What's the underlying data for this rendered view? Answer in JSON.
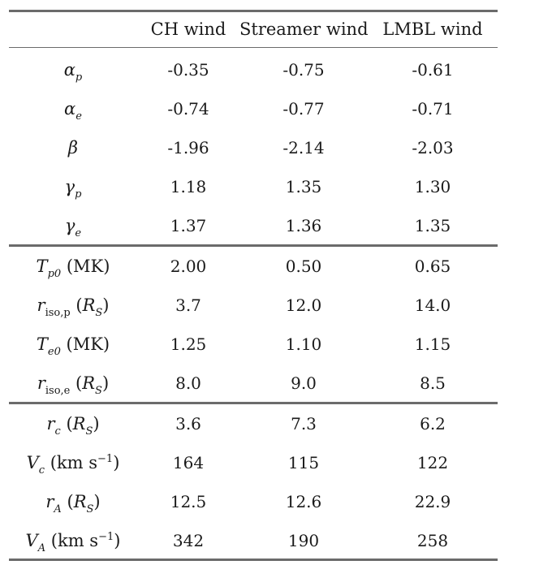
{
  "table": {
    "columns": [
      "",
      "CH wind",
      "Streamer wind",
      "LMBL wind"
    ],
    "rows": [
      {
        "param": {
          "sym": "α",
          "sub": "p",
          "unit_open": "",
          "unit_sym": "",
          "unit_sub": "",
          "unit_text": "",
          "unit_sup": "",
          "unit_close": ""
        },
        "values": [
          "-0.35",
          "-0.75",
          "-0.61"
        ]
      },
      {
        "param": {
          "sym": "α",
          "sub": "e",
          "unit_open": "",
          "unit_sym": "",
          "unit_sub": "",
          "unit_text": "",
          "unit_sup": "",
          "unit_close": ""
        },
        "values": [
          "-0.74",
          "-0.77",
          "-0.71"
        ]
      },
      {
        "param": {
          "sym": "β",
          "sub": "",
          "unit_open": "",
          "unit_sym": "",
          "unit_sub": "",
          "unit_text": "",
          "unit_sup": "",
          "unit_close": ""
        },
        "values": [
          "-1.96",
          "-2.14",
          "-2.03"
        ]
      },
      {
        "param": {
          "sym": "γ",
          "sub": "p",
          "unit_open": "",
          "unit_sym": "",
          "unit_sub": "",
          "unit_text": "",
          "unit_sup": "",
          "unit_close": ""
        },
        "values": [
          "1.18",
          "1.35",
          "1.30"
        ]
      },
      {
        "param": {
          "sym": "γ",
          "sub": "e",
          "unit_open": "",
          "unit_sym": "",
          "unit_sub": "",
          "unit_text": "",
          "unit_sup": "",
          "unit_close": ""
        },
        "values": [
          "1.37",
          "1.36",
          "1.35"
        ]
      },
      {
        "param": {
          "sym": "T",
          "sub": "p0",
          "unit_open": " (",
          "unit_sym": "",
          "unit_sub": "",
          "unit_text": "MK",
          "unit_sup": "",
          "unit_close": ")"
        },
        "values": [
          "2.00",
          "0.50",
          "0.65"
        ]
      },
      {
        "param": {
          "sym": "r",
          "sub": "iso,p",
          "unit_open": " (",
          "unit_sym": "R",
          "unit_sub": "S",
          "unit_text": "",
          "unit_sup": "",
          "unit_close": ")"
        },
        "values": [
          "3.7",
          "12.0",
          "14.0"
        ]
      },
      {
        "param": {
          "sym": "T",
          "sub": "e0",
          "unit_open": " (",
          "unit_sym": "",
          "unit_sub": "",
          "unit_text": "MK",
          "unit_sup": "",
          "unit_close": ")"
        },
        "values": [
          "1.25",
          "1.10",
          "1.15"
        ]
      },
      {
        "param": {
          "sym": "r",
          "sub": "iso,e",
          "unit_open": " (",
          "unit_sym": "R",
          "unit_sub": "S",
          "unit_text": "",
          "unit_sup": "",
          "unit_close": ")"
        },
        "values": [
          "8.0",
          "9.0",
          "8.5"
        ]
      },
      {
        "param": {
          "sym": "r",
          "sub": "c",
          "unit_open": " (",
          "unit_sym": "R",
          "unit_sub": "S",
          "unit_text": "",
          "unit_sup": "",
          "unit_close": ")"
        },
        "values": [
          "3.6",
          "7.3",
          "6.2"
        ]
      },
      {
        "param": {
          "sym": "V",
          "sub": "c",
          "unit_open": " (",
          "unit_sym": "",
          "unit_sub": "",
          "unit_text": "km s",
          "unit_sup": "−1",
          "unit_close": ")"
        },
        "values": [
          "164",
          "115",
          "122"
        ]
      },
      {
        "param": {
          "sym": "r",
          "sub": "A",
          "unit_open": " (",
          "unit_sym": "R",
          "unit_sub": "S",
          "unit_text": "",
          "unit_sup": "",
          "unit_close": ")"
        },
        "values": [
          "12.5",
          "12.6",
          "22.9"
        ]
      },
      {
        "param": {
          "sym": "V",
          "sub": "A",
          "unit_open": " (",
          "unit_sym": "",
          "unit_sub": "",
          "unit_text": "km s",
          "unit_sup": "−1",
          "unit_close": ")"
        },
        "values": [
          "342",
          "190",
          "258"
        ]
      }
    ]
  }
}
